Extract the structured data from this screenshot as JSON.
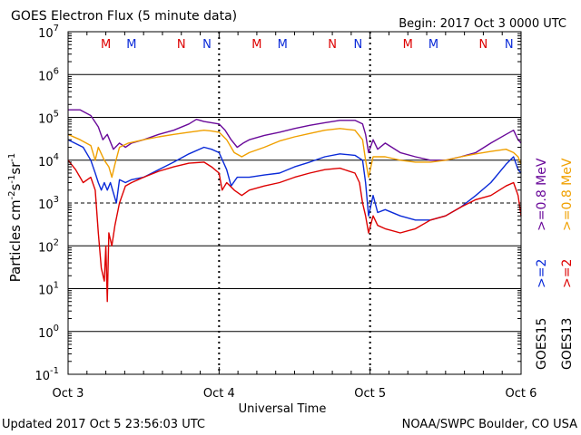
{
  "header": {
    "title": "GOES Electron Flux (5 minute data)",
    "begin": "Begin: 2017 Oct 3 0000 UTC"
  },
  "footer": {
    "updated": "Updated 2017 Oct  5 23:56:03 UTC",
    "credit": "NOAA/SWPC Boulder, CO USA"
  },
  "colors": {
    "goes15_ge_0_8": "#6a0a9a",
    "goes13_ge_0_8": "#f0a000",
    "goes15_ge_2": "#0a2ad8",
    "goes13_ge_2": "#dd0000",
    "axis": "#000000"
  },
  "chart_data": {
    "type": "line",
    "title": "GOES Electron Flux (5 minute data)",
    "xlabel": "Universal Time",
    "ylabel": "Particles cm-2s-1sr-1",
    "y_scale": "log",
    "ylim": [
      0.1,
      10000000
    ],
    "xlim": [
      "2017-10-03 00:00",
      "2017-10-06 00:00"
    ],
    "x_ticks": [
      "Oct 3",
      "Oct 4",
      "Oct 5",
      "Oct 6"
    ],
    "y_ticks": [
      {
        "value": 0.1,
        "base": "10",
        "exp": "-1"
      },
      {
        "value": 1,
        "base": "10",
        "exp": "0"
      },
      {
        "value": 10,
        "base": "10",
        "exp": "1"
      },
      {
        "value": 100,
        "base": "10",
        "exp": "2"
      },
      {
        "value": 1000,
        "base": "10",
        "exp": "3"
      },
      {
        "value": 10000,
        "base": "10",
        "exp": "4"
      },
      {
        "value": 100000,
        "base": "10",
        "exp": "5"
      },
      {
        "value": 1000000,
        "base": "10",
        "exp": "6"
      },
      {
        "value": 10000000,
        "base": "10",
        "exp": "7"
      }
    ],
    "reference_lines": [
      {
        "value": 1000,
        "style": "dashed"
      }
    ],
    "grid_lines": [
      1,
      10,
      100,
      10000,
      100000,
      1000000
    ],
    "marker_labels": [
      {
        "label": "M",
        "day": 0.25,
        "color": "#dd0000"
      },
      {
        "label": "M",
        "day": 0.42,
        "color": "#0a2ad8"
      },
      {
        "label": "N",
        "day": 0.75,
        "color": "#dd0000"
      },
      {
        "label": "N",
        "day": 0.92,
        "color": "#0a2ad8"
      },
      {
        "label": "M",
        "day": 1.25,
        "color": "#dd0000"
      },
      {
        "label": "M",
        "day": 1.42,
        "color": "#0a2ad8"
      },
      {
        "label": "N",
        "day": 1.75,
        "color": "#dd0000"
      },
      {
        "label": "N",
        "day": 1.92,
        "color": "#0a2ad8"
      },
      {
        "label": "M",
        "day": 2.25,
        "color": "#dd0000"
      },
      {
        "label": "M",
        "day": 2.42,
        "color": "#0a2ad8"
      },
      {
        "label": "N",
        "day": 2.75,
        "color": "#dd0000"
      },
      {
        "label": "N",
        "day": 2.92,
        "color": "#0a2ad8"
      }
    ],
    "side_labels": [
      {
        "text": ">=0.8  MeV",
        "color": "#6a0a9a"
      },
      {
        "text": ">=0.8  MeV",
        "color": "#f0a000"
      },
      {
        "text": ">=2",
        "color": "#0a2ad8"
      },
      {
        "text": ">=2",
        "color": "#dd0000"
      },
      {
        "text": "GOES15",
        "color": "#000000"
      },
      {
        "text": "GOES13",
        "color": "#000000"
      }
    ],
    "series": [
      {
        "color": "#6a0a9a",
        "points": [
          [
            0.0,
            150000
          ],
          [
            0.08,
            150000
          ],
          [
            0.15,
            110000
          ],
          [
            0.2,
            60000
          ],
          [
            0.23,
            30000
          ],
          [
            0.26,
            40000
          ],
          [
            0.3,
            18000
          ],
          [
            0.34,
            25000
          ],
          [
            0.38,
            20000
          ],
          [
            0.42,
            25000
          ],
          [
            0.5,
            30000
          ],
          [
            0.6,
            40000
          ],
          [
            0.7,
            50000
          ],
          [
            0.8,
            70000
          ],
          [
            0.85,
            90000
          ],
          [
            0.9,
            80000
          ],
          [
            0.95,
            75000
          ],
          [
            1.0,
            70000
          ],
          [
            1.04,
            50000
          ],
          [
            1.08,
            30000
          ],
          [
            1.12,
            20000
          ],
          [
            1.16,
            25000
          ],
          [
            1.2,
            30000
          ],
          [
            1.3,
            38000
          ],
          [
            1.4,
            45000
          ],
          [
            1.5,
            55000
          ],
          [
            1.6,
            65000
          ],
          [
            1.7,
            75000
          ],
          [
            1.8,
            85000
          ],
          [
            1.9,
            85000
          ],
          [
            1.95,
            70000
          ],
          [
            1.97,
            40000
          ],
          [
            1.99,
            15000
          ],
          [
            2.02,
            30000
          ],
          [
            2.05,
            18000
          ],
          [
            2.1,
            25000
          ],
          [
            2.2,
            15000
          ],
          [
            2.3,
            12000
          ],
          [
            2.4,
            10000
          ],
          [
            2.5,
            10000
          ],
          [
            2.6,
            12000
          ],
          [
            2.7,
            15000
          ],
          [
            2.8,
            25000
          ],
          [
            2.9,
            40000
          ],
          [
            2.95,
            50000
          ],
          [
            2.98,
            30000
          ],
          [
            3.0,
            25000
          ]
        ]
      },
      {
        "color": "#f0a000",
        "points": [
          [
            0.0,
            40000
          ],
          [
            0.08,
            30000
          ],
          [
            0.12,
            25000
          ],
          [
            0.15,
            22000
          ],
          [
            0.18,
            10000
          ],
          [
            0.2,
            20000
          ],
          [
            0.24,
            10000
          ],
          [
            0.27,
            7000
          ],
          [
            0.29,
            4000
          ],
          [
            0.31,
            8000
          ],
          [
            0.34,
            20000
          ],
          [
            0.4,
            25000
          ],
          [
            0.5,
            30000
          ],
          [
            0.6,
            35000
          ],
          [
            0.7,
            40000
          ],
          [
            0.8,
            45000
          ],
          [
            0.9,
            50000
          ],
          [
            0.95,
            48000
          ],
          [
            1.0,
            45000
          ],
          [
            1.05,
            30000
          ],
          [
            1.1,
            15000
          ],
          [
            1.15,
            12000
          ],
          [
            1.2,
            15000
          ],
          [
            1.3,
            20000
          ],
          [
            1.4,
            28000
          ],
          [
            1.5,
            35000
          ],
          [
            1.6,
            42000
          ],
          [
            1.7,
            50000
          ],
          [
            1.8,
            55000
          ],
          [
            1.9,
            50000
          ],
          [
            1.95,
            30000
          ],
          [
            1.97,
            10000
          ],
          [
            1.99,
            4000
          ],
          [
            2.02,
            12000
          ],
          [
            2.1,
            12000
          ],
          [
            2.2,
            10000
          ],
          [
            2.3,
            9000
          ],
          [
            2.4,
            9000
          ],
          [
            2.5,
            10000
          ],
          [
            2.6,
            12000
          ],
          [
            2.7,
            14000
          ],
          [
            2.8,
            16000
          ],
          [
            2.9,
            18000
          ],
          [
            2.95,
            15000
          ],
          [
            2.98,
            12000
          ],
          [
            3.0,
            8000
          ]
        ]
      },
      {
        "color": "#0a2ad8",
        "points": [
          [
            0.0,
            30000
          ],
          [
            0.1,
            20000
          ],
          [
            0.15,
            10000
          ],
          [
            0.18,
            5000
          ],
          [
            0.2,
            3000
          ],
          [
            0.22,
            2000
          ],
          [
            0.24,
            3000
          ],
          [
            0.26,
            2000
          ],
          [
            0.28,
            3000
          ],
          [
            0.32,
            1000
          ],
          [
            0.34,
            3500
          ],
          [
            0.38,
            3000
          ],
          [
            0.42,
            3500
          ],
          [
            0.5,
            4000
          ],
          [
            0.6,
            6000
          ],
          [
            0.7,
            9000
          ],
          [
            0.8,
            14000
          ],
          [
            0.9,
            20000
          ],
          [
            0.95,
            18000
          ],
          [
            1.0,
            15000
          ],
          [
            1.05,
            6000
          ],
          [
            1.08,
            2500
          ],
          [
            1.12,
            4000
          ],
          [
            1.2,
            4000
          ],
          [
            1.3,
            4500
          ],
          [
            1.4,
            5000
          ],
          [
            1.5,
            7000
          ],
          [
            1.6,
            9000
          ],
          [
            1.7,
            12000
          ],
          [
            1.8,
            14000
          ],
          [
            1.9,
            13000
          ],
          [
            1.95,
            10000
          ],
          [
            1.97,
            3000
          ],
          [
            1.99,
            500
          ],
          [
            2.02,
            1500
          ],
          [
            2.05,
            600
          ],
          [
            2.1,
            700
          ],
          [
            2.2,
            500
          ],
          [
            2.3,
            400
          ],
          [
            2.4,
            400
          ],
          [
            2.5,
            500
          ],
          [
            2.6,
            800
          ],
          [
            2.7,
            1500
          ],
          [
            2.8,
            3000
          ],
          [
            2.9,
            8000
          ],
          [
            2.95,
            12000
          ],
          [
            2.98,
            6000
          ],
          [
            3.0,
            5000
          ]
        ]
      },
      {
        "color": "#dd0000",
        "points": [
          [
            0.0,
            10000
          ],
          [
            0.05,
            6000
          ],
          [
            0.1,
            3000
          ],
          [
            0.15,
            4000
          ],
          [
            0.18,
            2000
          ],
          [
            0.2,
            200
          ],
          [
            0.22,
            30
          ],
          [
            0.24,
            15
          ],
          [
            0.25,
            100
          ],
          [
            0.26,
            5
          ],
          [
            0.27,
            200
          ],
          [
            0.29,
            100
          ],
          [
            0.31,
            300
          ],
          [
            0.34,
            1000
          ],
          [
            0.38,
            2500
          ],
          [
            0.42,
            3000
          ],
          [
            0.5,
            4000
          ],
          [
            0.6,
            5500
          ],
          [
            0.7,
            7000
          ],
          [
            0.8,
            8500
          ],
          [
            0.9,
            9000
          ],
          [
            0.95,
            7000
          ],
          [
            1.0,
            5000
          ],
          [
            1.02,
            2000
          ],
          [
            1.05,
            3000
          ],
          [
            1.1,
            2000
          ],
          [
            1.15,
            1500
          ],
          [
            1.2,
            2000
          ],
          [
            1.3,
            2500
          ],
          [
            1.4,
            3000
          ],
          [
            1.5,
            4000
          ],
          [
            1.6,
            5000
          ],
          [
            1.7,
            6000
          ],
          [
            1.8,
            6500
          ],
          [
            1.9,
            5000
          ],
          [
            1.93,
            3000
          ],
          [
            1.95,
            1000
          ],
          [
            1.97,
            500
          ],
          [
            1.99,
            200
          ],
          [
            2.02,
            500
          ],
          [
            2.05,
            300
          ],
          [
            2.1,
            250
          ],
          [
            2.2,
            200
          ],
          [
            2.3,
            250
          ],
          [
            2.4,
            400
          ],
          [
            2.5,
            500
          ],
          [
            2.6,
            800
          ],
          [
            2.7,
            1200
          ],
          [
            2.8,
            1500
          ],
          [
            2.9,
            2500
          ],
          [
            2.95,
            3000
          ],
          [
            2.98,
            1500
          ],
          [
            3.0,
            500
          ]
        ]
      }
    ]
  }
}
